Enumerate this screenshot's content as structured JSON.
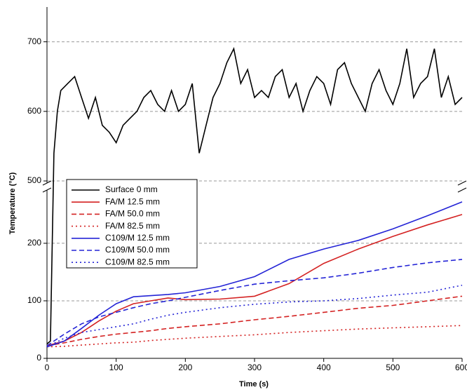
{
  "chart_data": {
    "type": "line",
    "x_label": "Time (s)",
    "y_label": "Temperature (°C)",
    "xlim": [
      0,
      600
    ],
    "xticks": [
      0,
      100,
      200,
      300,
      400,
      500,
      600
    ],
    "y_segments": [
      {
        "ylim": [
          0,
          295
        ],
        "yticks": [
          0,
          100,
          200
        ]
      },
      {
        "ylim": [
          495,
          750
        ],
        "yticks": [
          500,
          600,
          700
        ]
      }
    ],
    "grid": true,
    "legend": "upper left",
    "series": [
      {
        "name": "Surface 0 mm",
        "color": "#000000",
        "dash": "solid",
        "x": [
          0,
          5,
          10,
          15,
          20,
          30,
          40,
          50,
          60,
          70,
          80,
          90,
          100,
          110,
          120,
          130,
          140,
          150,
          160,
          170,
          180,
          190,
          200,
          210,
          220,
          230,
          240,
          250,
          260,
          270,
          280,
          290,
          300,
          310,
          320,
          330,
          340,
          350,
          360,
          370,
          380,
          390,
          400,
          410,
          420,
          430,
          440,
          450,
          460,
          470,
          480,
          490,
          500,
          510,
          520,
          530,
          540,
          550,
          560,
          570,
          580,
          590,
          600
        ],
        "values": [
          25,
          30,
          540,
          600,
          630,
          640,
          650,
          620,
          590,
          620,
          580,
          570,
          555,
          580,
          590,
          600,
          620,
          630,
          610,
          600,
          630,
          600,
          610,
          640,
          540,
          580,
          620,
          640,
          670,
          690,
          640,
          660,
          620,
          630,
          620,
          650,
          660,
          620,
          640,
          600,
          630,
          650,
          640,
          610,
          660,
          670,
          640,
          620,
          600,
          640,
          660,
          630,
          610,
          640,
          690,
          620,
          640,
          650,
          690,
          620,
          650,
          610,
          620
        ]
      },
      {
        "name": "FA/M 12.5 mm",
        "color": "#d42222",
        "dash": "solid",
        "x": [
          0,
          25,
          50,
          75,
          100,
          125,
          150,
          175,
          200,
          250,
          300,
          350,
          400,
          450,
          500,
          550,
          600
        ],
        "values": [
          22,
          30,
          45,
          65,
          82,
          95,
          100,
          105,
          102,
          103,
          108,
          130,
          165,
          190,
          212,
          232,
          250
        ]
      },
      {
        "name": "FA/M 50.0 mm",
        "color": "#d42222",
        "dash": "dashed",
        "x": [
          0,
          25,
          50,
          75,
          100,
          125,
          150,
          175,
          200,
          250,
          300,
          350,
          400,
          450,
          500,
          550,
          600
        ],
        "values": [
          22,
          27,
          33,
          38,
          42,
          45,
          48,
          52,
          55,
          60,
          67,
          73,
          80,
          87,
          92,
          100,
          108
        ]
      },
      {
        "name": "FA/M 82.5 mm",
        "color": "#d42222",
        "dash": "dotted",
        "x": [
          0,
          25,
          50,
          75,
          100,
          125,
          150,
          175,
          200,
          250,
          300,
          350,
          400,
          450,
          500,
          550,
          600
        ],
        "values": [
          20,
          21,
          23,
          25,
          27,
          28,
          31,
          33,
          35,
          38,
          41,
          45,
          48,
          51,
          53,
          55,
          57
        ]
      },
      {
        "name": "C109/M 12.5 mm",
        "color": "#2424d6",
        "dash": "solid",
        "x": [
          0,
          25,
          50,
          75,
          100,
          125,
          150,
          175,
          200,
          250,
          300,
          350,
          400,
          450,
          500,
          550,
          600
        ],
        "values": [
          20,
          30,
          52,
          75,
          95,
          107,
          109,
          111,
          114,
          125,
          142,
          172,
          190,
          205,
          225,
          248,
          272
        ]
      },
      {
        "name": "C109/M 50.0 mm",
        "color": "#2424d6",
        "dash": "dashed",
        "x": [
          0,
          25,
          50,
          75,
          100,
          125,
          150,
          175,
          200,
          250,
          300,
          350,
          400,
          450,
          500,
          550,
          600
        ],
        "values": [
          22,
          42,
          60,
          72,
          80,
          88,
          95,
          100,
          106,
          118,
          129,
          135,
          140,
          148,
          158,
          166,
          172
        ]
      },
      {
        "name": "C109/M 82.5 mm",
        "color": "#2424d6",
        "dash": "dotted",
        "x": [
          0,
          25,
          50,
          75,
          100,
          125,
          150,
          175,
          200,
          250,
          300,
          350,
          400,
          450,
          500,
          550,
          600
        ],
        "values": [
          20,
          35,
          45,
          50,
          55,
          60,
          68,
          75,
          80,
          88,
          94,
          98,
          100,
          104,
          110,
          115,
          127
        ]
      }
    ]
  }
}
